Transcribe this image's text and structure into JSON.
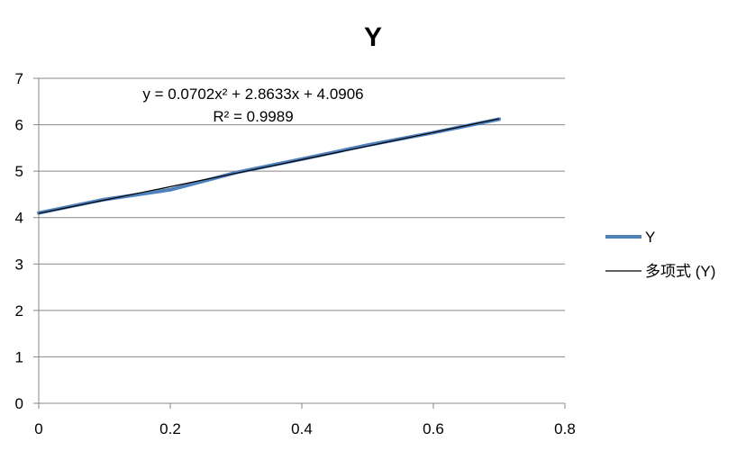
{
  "chart_data": {
    "type": "line",
    "title": "Y",
    "xlabel": "",
    "ylabel": "",
    "xlim": [
      0,
      0.8
    ],
    "ylim": [
      0,
      7
    ],
    "x_ticks": [
      "0",
      "0.2",
      "0.4",
      "0.6",
      "0.8"
    ],
    "y_ticks": [
      "0",
      "1",
      "2",
      "3",
      "4",
      "5",
      "6",
      "7"
    ],
    "grid": "horizontal",
    "legend_position": "right",
    "series": [
      {
        "name": "Y",
        "color": "#4f81bd",
        "x": [
          0,
          0.1,
          0.2,
          0.3,
          0.4,
          0.5,
          0.6,
          0.7
        ],
        "y": [
          4.1,
          4.39,
          4.6,
          4.97,
          5.26,
          5.56,
          5.83,
          6.12
        ]
      }
    ],
    "trendline": {
      "name": "多项式 (Y)",
      "color": "#000000",
      "type": "polynomial",
      "coefficients": [
        0.0702,
        2.8633,
        4.0906
      ],
      "x_range": [
        0,
        0.7
      ],
      "equation": "y = 0.0702x² + 2.8633x + 4.0906",
      "r_squared": "R² = 0.9989"
    }
  }
}
